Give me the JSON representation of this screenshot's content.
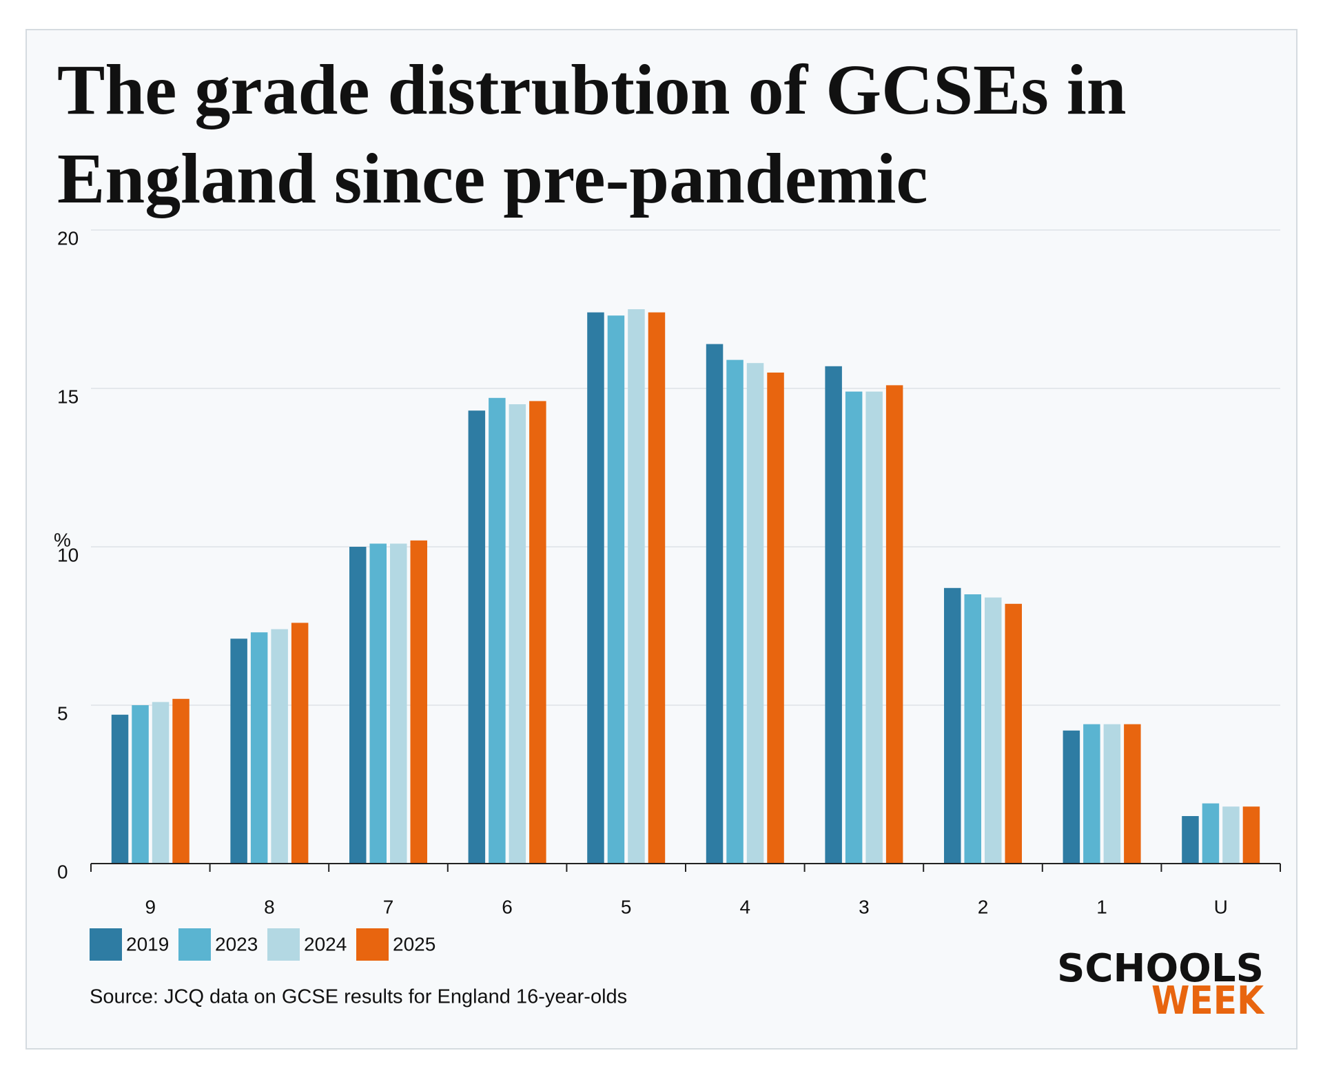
{
  "chart_data": {
    "type": "bar",
    "title": [
      "The grade distrubtion of GCSEs in",
      "England since pre-pandemic"
    ],
    "y_label": "%",
    "categories": [
      "9",
      "8",
      "7",
      "6",
      "5",
      "4",
      "3",
      "2",
      "1",
      "U"
    ],
    "series": [
      {
        "name": "2019",
        "color": "#2e7ca3",
        "values": [
          4.7,
          7.1,
          10.0,
          14.3,
          17.4,
          16.4,
          15.7,
          8.7,
          4.2,
          1.5
        ]
      },
      {
        "name": "2023",
        "color": "#5ab4d1",
        "values": [
          5.0,
          7.3,
          10.1,
          14.7,
          17.3,
          15.9,
          14.9,
          8.5,
          4.4,
          1.9
        ]
      },
      {
        "name": "2024",
        "color": "#b3d8e3",
        "values": [
          5.1,
          7.4,
          10.1,
          14.5,
          17.5,
          15.8,
          14.9,
          8.4,
          4.4,
          1.8
        ]
      },
      {
        "name": "2025",
        "color": "#e8650f",
        "values": [
          5.2,
          7.6,
          10.2,
          14.6,
          17.4,
          15.5,
          15.1,
          8.2,
          4.4,
          1.8
        ]
      }
    ],
    "ylim": [
      0,
      20
    ],
    "yticks": [
      0,
      5,
      10,
      15,
      20
    ],
    "grid": true,
    "legend": "bottom-left",
    "source": "Source: JCQ data on GCSE results for England 16-year-olds"
  },
  "branding": {
    "line1": "SCHOOLS",
    "line2": "WEEK"
  }
}
